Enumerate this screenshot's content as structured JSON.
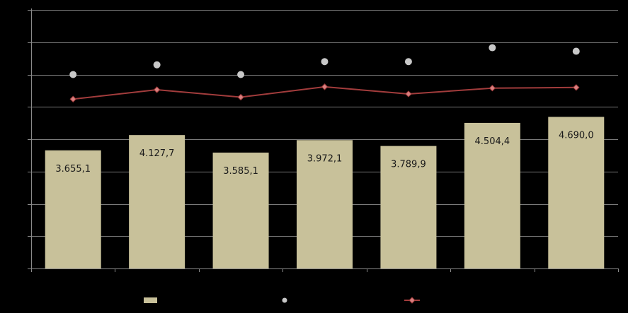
{
  "chart_data": {
    "type": "bar",
    "categories": [
      "",
      "",
      "",
      "",
      "",
      "",
      ""
    ],
    "ylim": [
      0,
      8000
    ],
    "grid": true,
    "legend_position": "bottom",
    "series": [
      {
        "kind": "bar",
        "color": "#c8c19a",
        "values": [
          3655.1,
          4127.7,
          3585.1,
          3972.1,
          3789.9,
          4504.4,
          4690.0
        ],
        "labels": [
          "3.655,1",
          "4.127,7",
          "3.585,1",
          "3.972,1",
          "3.789,9",
          "4.504,4",
          "4.690,0"
        ]
      },
      {
        "kind": "scatter",
        "color": "#c8c8c8",
        "values": [
          6000,
          6300,
          6000,
          6400,
          6400,
          6830,
          6720
        ]
      },
      {
        "kind": "line",
        "color": "#a23c3c",
        "marker_color": "#d98080",
        "values": [
          5240,
          5530,
          5300,
          5620,
          5400,
          5580,
          5600
        ]
      }
    ]
  }
}
